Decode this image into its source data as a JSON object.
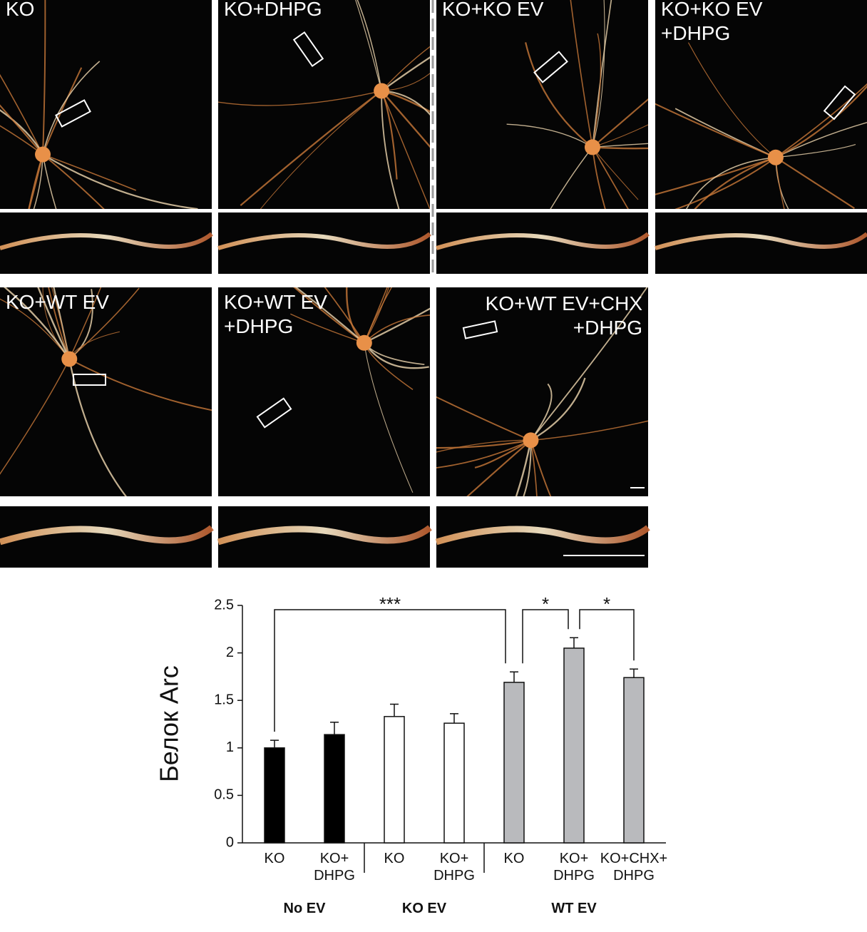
{
  "panels": [
    "KO",
    "KO+DHPG",
    "KO+KO EV",
    "KO+KO EV\n+DHPG",
    "KO+WT EV",
    "KO+WT EV\n+DHPG",
    "KO+WT EV+CHX\n+DHPG"
  ],
  "chart_data": {
    "type": "bar",
    "ylabel": "Белок Arc",
    "categories": [
      "KO",
      "KO+\nDHPG",
      "KO",
      "KO+\nDHPG",
      "KO",
      "KO+\nDHPG",
      "KO+CHX+\nDHPG"
    ],
    "values": [
      1.0,
      1.14,
      1.33,
      1.26,
      1.69,
      2.05,
      1.74
    ],
    "errors": [
      0.08,
      0.13,
      0.13,
      0.1,
      0.11,
      0.11,
      0.09
    ],
    "colors": [
      "#000000",
      "#000000",
      "#ffffff",
      "#ffffff",
      "#b9babd",
      "#b9babd",
      "#b9babd"
    ],
    "groups": [
      {
        "label": "No EV",
        "members": [
          0,
          1
        ]
      },
      {
        "label": "KO EV",
        "members": [
          2,
          3
        ]
      },
      {
        "label": "WT EV",
        "members": [
          4,
          5,
          6
        ]
      }
    ],
    "comparisons": [
      {
        "from": 0,
        "to": 4,
        "label": "***"
      },
      {
        "from": 4,
        "to": 5,
        "label": "*"
      },
      {
        "from": 5,
        "to": 6,
        "label": "*"
      }
    ],
    "ylim": [
      0,
      2.5
    ],
    "yticks": [
      0,
      0.5,
      1,
      1.5,
      2,
      2.5
    ]
  }
}
